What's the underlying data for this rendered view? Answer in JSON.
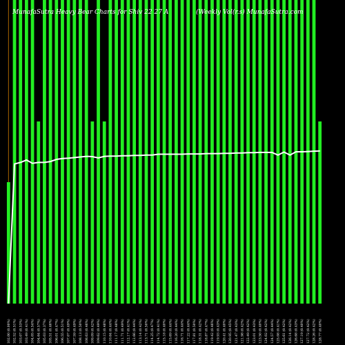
{
  "chart_data": {
    "type": "bar",
    "title_left": "MunafaSutra Heavy Bear Charts for Shiv 22 27 A",
    "title_right": "(Weekly Vol(r.s) MunafaSutra.com",
    "ylim": [
      0,
      100
    ],
    "grid": false,
    "colors": {
      "up": "#22ee22",
      "down": "#ee1111",
      "line": "#ffffff",
      "wick": "#aa6600",
      "background": "#000000"
    },
    "categories": [
      "102.00 (0.00%)",
      "102.52 (0.51%)",
      "103.07 (0.53%)",
      "103.49 (0.41%)",
      "104.05 (0.54%)",
      "104.64 (0.57%)",
      "105.03 (0.37%)",
      "105.51 (0.46%)",
      "106.01 (0.47%)",
      "106.55 (0.51%)",
      "107.07 (0.49%)",
      "107.59 (0.49%)",
      "108.13 (0.50%)",
      "108.63 (0.46%)",
      "109.09 (0.42%)",
      "109.62 (0.49%)",
      "110.15 (0.48%)",
      "110.64 (0.44%)",
      "111.17 (0.48%)",
      "111.71 (0.49%)",
      "112.17 (0.41%)",
      "112.66 (0.44%)",
      "113.14 (0.42%)",
      "113.71 (0.50%)",
      "114.25 (0.47%)",
      "114.72 (0.41%)",
      "115.18 (0.40%)",
      "115.69 (0.44%)",
      "116.20 (0.44%)",
      "116.71 (0.44%)",
      "117.22 (0.44%)",
      "117.81 (0.50%)",
      "118.31 (0.42%)",
      "118.87 (0.47%)",
      "119.42 (0.46%)",
      "119.93 (0.43%)",
      "120.41 (0.40%)",
      "120.95 (0.45%)",
      "121.47 (0.43%)",
      "121.98 (0.42%)",
      "122.49 (0.42%)",
      "123.01 (0.43%)",
      "123.50 (0.40%)",
      "124.02 (0.42%)",
      "124.57 (0.44%)",
      "125.08 (0.41%)",
      "125.61 (0.42%)",
      "126.14 (0.42%)",
      "126.68 (0.43%)",
      "127.19 (0.40%)",
      "127.72 (0.42%)",
      "128.26 (0.42%)",
      "128.77 (0.40%)"
    ],
    "series": [
      {
        "values": [
          40,
          100,
          100,
          100,
          100,
          60,
          100,
          100,
          100,
          100,
          100,
          100,
          100,
          100,
          60,
          100,
          60,
          100,
          100,
          100,
          100,
          100,
          100,
          100,
          100,
          100,
          100,
          100,
          100,
          100,
          100,
          100,
          100,
          100,
          100,
          100,
          100,
          100,
          100,
          100,
          100,
          100,
          100,
          100,
          100,
          100,
          100,
          100,
          100,
          100,
          100,
          100,
          60
        ]
      }
    ],
    "bar_colors": [
      "g",
      "g",
      "g",
      "g",
      "g",
      "g",
      "g",
      "g",
      "g",
      "g",
      "g",
      "g",
      "g",
      "g",
      "g",
      "g",
      "g",
      "g",
      "g",
      "g",
      "g",
      "g",
      "g",
      "g",
      "g",
      "g",
      "g",
      "g",
      "g",
      "g",
      "g",
      "g",
      "g",
      "g",
      "g",
      "g",
      "g",
      "g",
      "g",
      "g",
      "g",
      "g",
      "g",
      "g",
      "g",
      "g",
      "g",
      "g",
      "g",
      "g",
      "g",
      "g",
      "g"
    ],
    "vol_values": [
      60,
      0,
      0,
      0,
      0,
      40,
      0,
      0,
      0,
      0,
      0,
      0,
      0,
      0,
      40,
      0,
      40,
      0,
      0,
      0,
      0,
      0,
      0,
      0,
      0,
      0,
      0,
      0,
      0,
      0,
      0,
      0,
      0,
      0,
      0,
      0,
      0,
      0,
      0,
      0,
      0,
      0,
      0,
      0,
      0,
      0,
      0,
      0,
      0,
      0,
      0,
      0,
      40
    ],
    "wick_present": [
      1,
      1,
      0,
      0,
      1,
      0,
      0,
      0,
      0,
      1,
      0,
      1,
      1,
      1,
      0,
      0,
      0,
      1,
      0,
      0,
      1,
      0,
      1,
      0,
      1,
      0,
      1,
      1,
      0,
      0,
      0,
      0,
      1,
      1,
      1,
      1,
      0,
      0,
      0,
      1,
      1,
      0,
      0,
      0,
      1,
      0,
      0,
      0,
      1,
      1,
      0,
      0,
      0
    ],
    "line_values": [
      0,
      46,
      46.5,
      47.3,
      46.2,
      46.5,
      46.5,
      46.8,
      47.5,
      47.8,
      47.9,
      48.1,
      48.3,
      48.5,
      48.4,
      48.0,
      48.5,
      48.6,
      48.6,
      48.7,
      48.7,
      48.8,
      48.8,
      48.9,
      48.9,
      49.2,
      49.2,
      49.2,
      49.2,
      49.2,
      49.3,
      49.3,
      49.3,
      49.4,
      49.4,
      49.4,
      49.5,
      49.5,
      49.6,
      49.6,
      49.7,
      49.7,
      49.8,
      49.8,
      49.8,
      48.9,
      49.9,
      48.9,
      50.0,
      50.0,
      50.1,
      50.2,
      50.3
    ]
  }
}
